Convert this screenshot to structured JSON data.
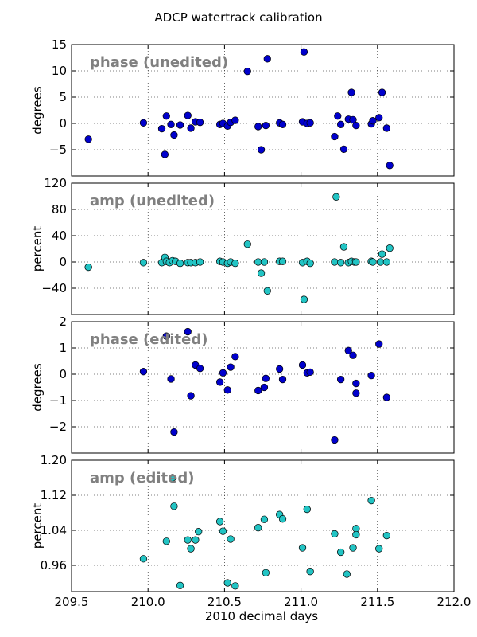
{
  "figure_title": "ADCP watertrack calibration",
  "xlabel": "2010 decimal days",
  "colors": {
    "blue": "#0000cc",
    "cyan": "#22c4c4",
    "panel_title": "#808080"
  },
  "chart_data": [
    {
      "type": "scatter",
      "title": "phase (unedited)",
      "ylabel": "degrees",
      "color": "#0000cc",
      "xlim": [
        209.5,
        212.0
      ],
      "ylim": [
        -10,
        15
      ],
      "yticks": [
        -5,
        0,
        5,
        10,
        15
      ],
      "ytick_labels": [
        "−5",
        "0",
        "5",
        "10",
        "15"
      ],
      "xticks": [
        209.5,
        210.0,
        210.5,
        211.0,
        211.5,
        212.0
      ],
      "grid": true,
      "points": [
        [
          209.61,
          -3.0
        ],
        [
          209.97,
          0.1
        ],
        [
          210.09,
          -1.0
        ],
        [
          210.11,
          -5.9
        ],
        [
          210.12,
          1.4
        ],
        [
          210.15,
          -0.2
        ],
        [
          210.17,
          -2.2
        ],
        [
          210.21,
          -0.3
        ],
        [
          210.26,
          1.5
        ],
        [
          210.28,
          -0.9
        ],
        [
          210.31,
          0.3
        ],
        [
          210.34,
          0.2
        ],
        [
          210.47,
          -0.2
        ],
        [
          210.49,
          0.0
        ],
        [
          210.52,
          -0.5
        ],
        [
          210.54,
          0.2
        ],
        [
          210.57,
          0.6
        ],
        [
          210.65,
          9.9
        ],
        [
          210.72,
          -0.6
        ],
        [
          210.74,
          -5.0
        ],
        [
          210.77,
          -0.4
        ],
        [
          210.78,
          12.3
        ],
        [
          210.86,
          0.1
        ],
        [
          210.88,
          -0.2
        ],
        [
          211.01,
          0.3
        ],
        [
          211.02,
          13.6
        ],
        [
          211.04,
          0.0
        ],
        [
          211.06,
          0.1
        ],
        [
          211.22,
          -2.5
        ],
        [
          211.24,
          1.4
        ],
        [
          211.26,
          -0.2
        ],
        [
          211.28,
          -4.9
        ],
        [
          211.31,
          0.8
        ],
        [
          211.33,
          5.9
        ],
        [
          211.34,
          0.7
        ],
        [
          211.36,
          -0.4
        ],
        [
          211.46,
          -0.1
        ],
        [
          211.47,
          0.5
        ],
        [
          211.51,
          1.1
        ],
        [
          211.53,
          5.9
        ],
        [
          211.56,
          -0.9
        ],
        [
          211.58,
          -8.0
        ]
      ]
    },
    {
      "type": "scatter",
      "title": "amp (unedited)",
      "ylabel": "percent",
      "color": "#22c4c4",
      "xlim": [
        209.5,
        212.0
      ],
      "ylim": [
        -80,
        120
      ],
      "yticks": [
        -40,
        0,
        40,
        80,
        120
      ],
      "ytick_labels": [
        "−40",
        "0",
        "40",
        "80",
        "120"
      ],
      "xticks": [
        209.5,
        210.0,
        210.5,
        211.0,
        211.5,
        212.0
      ],
      "grid": true,
      "points": [
        [
          209.61,
          -8.0
        ],
        [
          209.97,
          -1.0
        ],
        [
          210.09,
          -1.0
        ],
        [
          210.11,
          7.0
        ],
        [
          210.12,
          1.0
        ],
        [
          210.14,
          -1.0
        ],
        [
          210.16,
          2.0
        ],
        [
          210.18,
          1.0
        ],
        [
          210.21,
          -2.0
        ],
        [
          210.26,
          -1.0
        ],
        [
          210.28,
          -1.0
        ],
        [
          210.31,
          -1.0
        ],
        [
          210.34,
          0.0
        ],
        [
          210.47,
          1.0
        ],
        [
          210.49,
          0.0
        ],
        [
          210.52,
          -2.0
        ],
        [
          210.54,
          0.0
        ],
        [
          210.57,
          -2.0
        ],
        [
          210.65,
          27.0
        ],
        [
          210.72,
          0.0
        ],
        [
          210.74,
          -17.0
        ],
        [
          210.76,
          0.0
        ],
        [
          210.78,
          -44.0
        ],
        [
          210.86,
          1.0
        ],
        [
          210.88,
          1.0
        ],
        [
          211.01,
          -1.0
        ],
        [
          211.02,
          -57.0
        ],
        [
          211.04,
          1.0
        ],
        [
          211.06,
          -2.0
        ],
        [
          211.22,
          0.0
        ],
        [
          211.23,
          99.0
        ],
        [
          211.26,
          -1.0
        ],
        [
          211.28,
          23.0
        ],
        [
          211.31,
          -1.0
        ],
        [
          211.33,
          1.0
        ],
        [
          211.35,
          0.0
        ],
        [
          211.36,
          0.0
        ],
        [
          211.46,
          1.0
        ],
        [
          211.47,
          0.0
        ],
        [
          211.52,
          0.0
        ],
        [
          211.53,
          12.0
        ],
        [
          211.56,
          0.0
        ],
        [
          211.58,
          21.0
        ]
      ]
    },
    {
      "type": "scatter",
      "title": "phase (edited)",
      "ylabel": "degrees",
      "color": "#0000cc",
      "xlim": [
        209.5,
        212.0
      ],
      "ylim": [
        -3,
        2
      ],
      "yticks": [
        -2,
        -1,
        0,
        1,
        2
      ],
      "ytick_labels": [
        "−2",
        "−1",
        "0",
        "1",
        "2"
      ],
      "xticks": [
        209.5,
        210.0,
        210.5,
        211.0,
        211.5,
        212.0
      ],
      "grid": true,
      "points": [
        [
          209.97,
          0.1
        ],
        [
          210.12,
          1.45
        ],
        [
          210.15,
          -0.18
        ],
        [
          210.17,
          -2.2
        ],
        [
          210.26,
          1.62
        ],
        [
          210.28,
          -0.82
        ],
        [
          210.31,
          0.35
        ],
        [
          210.34,
          0.22
        ],
        [
          210.47,
          -0.3
        ],
        [
          210.49,
          0.05
        ],
        [
          210.52,
          -0.6
        ],
        [
          210.54,
          0.27
        ],
        [
          210.57,
          0.67
        ],
        [
          210.72,
          -0.62
        ],
        [
          210.76,
          -0.5
        ],
        [
          210.77,
          -0.16
        ],
        [
          210.86,
          0.2
        ],
        [
          210.88,
          -0.2
        ],
        [
          211.01,
          0.35
        ],
        [
          211.04,
          0.05
        ],
        [
          211.06,
          0.08
        ],
        [
          211.22,
          -2.5
        ],
        [
          211.26,
          -0.2
        ],
        [
          211.31,
          0.9
        ],
        [
          211.34,
          0.72
        ],
        [
          211.36,
          -0.35
        ],
        [
          211.36,
          -0.72
        ],
        [
          211.46,
          -0.05
        ],
        [
          211.51,
          1.15
        ],
        [
          211.56,
          -0.88
        ]
      ]
    },
    {
      "type": "scatter",
      "title": "amp (edited)",
      "ylabel": "percent",
      "color": "#22c4c4",
      "xlim": [
        209.5,
        212.0
      ],
      "ylim": [
        0.9,
        1.2
      ],
      "yticks": [
        0.96,
        1.04,
        1.12,
        1.2
      ],
      "ytick_labels": [
        "0.96",
        "1.04",
        "1.12",
        "1.20"
      ],
      "xticks": [
        209.5,
        210.0,
        210.5,
        211.0,
        211.5,
        212.0
      ],
      "xtick_labels": [
        "209.5",
        "210.0",
        "210.5",
        "211.0",
        "211.5",
        "212.0"
      ],
      "grid": true,
      "points": [
        [
          209.97,
          0.975
        ],
        [
          210.12,
          1.015
        ],
        [
          210.16,
          1.16
        ],
        [
          210.17,
          1.095
        ],
        [
          210.21,
          0.914
        ],
        [
          210.26,
          1.018
        ],
        [
          210.28,
          0.998
        ],
        [
          210.31,
          1.018
        ],
        [
          210.33,
          1.037
        ],
        [
          210.47,
          1.06
        ],
        [
          210.49,
          1.038
        ],
        [
          210.52,
          0.92
        ],
        [
          210.54,
          1.02
        ],
        [
          210.57,
          0.913
        ],
        [
          210.72,
          1.046
        ],
        [
          210.76,
          1.065
        ],
        [
          210.77,
          0.943
        ],
        [
          210.86,
          1.076
        ],
        [
          210.88,
          1.066
        ],
        [
          211.01,
          1.0
        ],
        [
          211.04,
          1.088
        ],
        [
          211.06,
          0.946
        ],
        [
          211.22,
          1.032
        ],
        [
          211.26,
          0.99
        ],
        [
          211.3,
          0.94
        ],
        [
          211.34,
          1.0
        ],
        [
          211.36,
          1.044
        ],
        [
          211.36,
          1.03
        ],
        [
          211.46,
          1.108
        ],
        [
          211.51,
          0.998
        ],
        [
          211.56,
          1.028
        ]
      ]
    }
  ]
}
